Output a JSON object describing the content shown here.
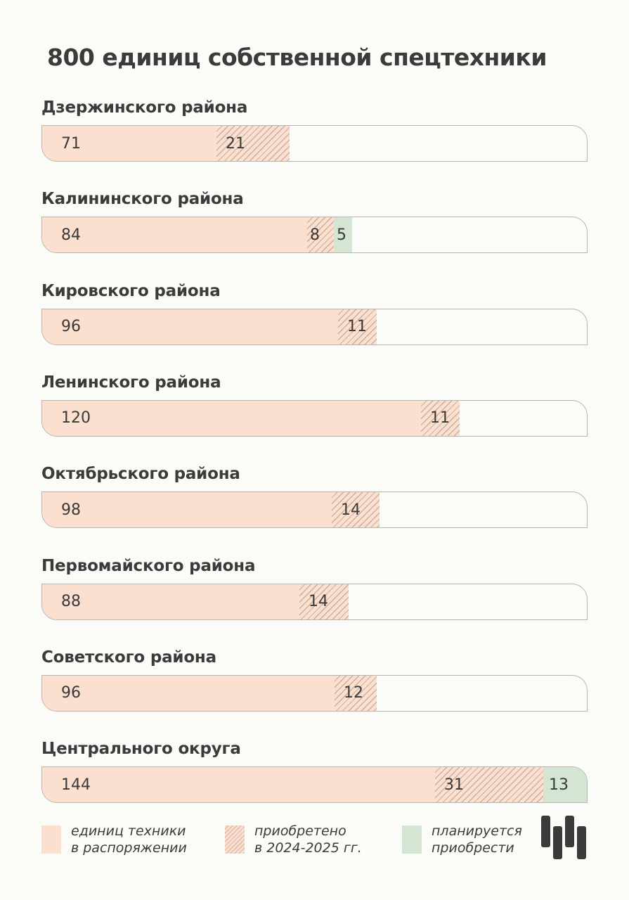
{
  "title": "800 единиц собственной спецтехники",
  "colors": {
    "owned": "#fbdfcf",
    "bought_hatch": "#c9aea2",
    "planned": "#d5e5d4",
    "text": "#3b3b3b",
    "background": "#fbfbf7"
  },
  "rows": [
    {
      "label": "Дзержинского района",
      "owned": 71,
      "bought": 21,
      "planned": null
    },
    {
      "label": "Калининского района",
      "owned": 84,
      "bought": 8,
      "planned": 5
    },
    {
      "label": "Кировского района",
      "owned": 96,
      "bought": 11,
      "planned": null
    },
    {
      "label": "Ленинского района",
      "owned": 120,
      "bought": 11,
      "planned": null
    },
    {
      "label": "Октябрьского района",
      "owned": 98,
      "bought": 14,
      "planned": null
    },
    {
      "label": "Первомайского района",
      "owned": 88,
      "bought": 14,
      "planned": null
    },
    {
      "label": "Советского района",
      "owned": 96,
      "bought": 12,
      "planned": null
    },
    {
      "label": "Центрального округа",
      "owned": 144,
      "bought": 31,
      "planned": 13
    }
  ],
  "legend": {
    "owned": "единиц техники\nв распоряжении",
    "bought": "приобретено\nв 2024-2025 гг.",
    "planned": "планируется\nприобрести"
  },
  "chart_data": {
    "type": "bar",
    "orientation": "horizontal",
    "stacked": true,
    "title": "800 единиц собственной спецтехники",
    "categories": [
      "Дзержинского района",
      "Калининского района",
      "Кировского района",
      "Ленинского района",
      "Октябрьского района",
      "Первомайского района",
      "Советского района",
      "Центрального округа"
    ],
    "series": [
      {
        "name": "единиц техники в распоряжении",
        "values": [
          71,
          84,
          96,
          120,
          98,
          88,
          96,
          144
        ]
      },
      {
        "name": "приобретено в 2024-2025 гг.",
        "values": [
          21,
          8,
          11,
          11,
          14,
          14,
          12,
          31
        ]
      },
      {
        "name": "планируется приобрести",
        "values": [
          0,
          5,
          0,
          0,
          0,
          0,
          0,
          13
        ]
      }
    ],
    "xlabel": "",
    "ylabel": "",
    "grid": false,
    "legend_position": "bottom"
  }
}
